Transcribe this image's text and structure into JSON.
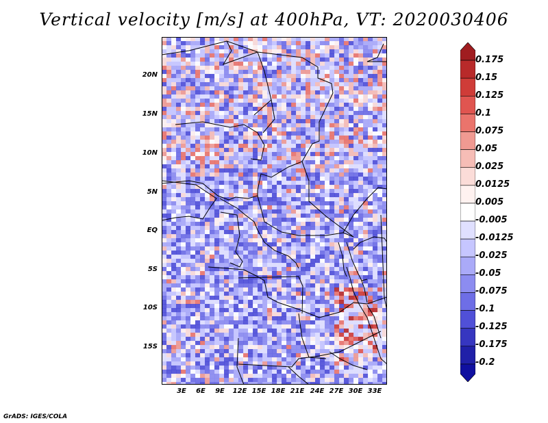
{
  "title": "Vertical velocity [m/s] at 400hPa, VT: 2020030406",
  "map": {
    "lat_labels": [
      "20N",
      "15N",
      "10N",
      "5N",
      "EQ",
      "5S",
      "10S",
      "15S"
    ],
    "lon_labels": [
      "3E",
      "6E",
      "9E",
      "12E",
      "15E",
      "18E",
      "21E",
      "24E",
      "27E",
      "30E",
      "33E"
    ]
  },
  "colorbar": {
    "labels": [
      "0.175",
      "0.15",
      "0.125",
      "0.1",
      "0.075",
      "0.05",
      "0.025",
      "0.0125",
      "0.005",
      "-0.005",
      "-0.0125",
      "-0.025",
      "-0.05",
      "-0.075",
      "-0.1",
      "-0.125",
      "-0.175",
      "-0.2"
    ],
    "colors": [
      "#a01d20",
      "#b82a2a",
      "#cf3c38",
      "#e05550",
      "#ea746c",
      "#f09a92",
      "#f6bdb6",
      "#fbdcd8",
      "#fff2f0",
      "#ffffff",
      "#e0e0ff",
      "#c6c6ff",
      "#aaaaf8",
      "#8c8cf0",
      "#6e6ee6",
      "#5050d8",
      "#3636c0",
      "#2020a8",
      "#1010a0"
    ]
  },
  "footer": "GrADS: IGES/COLA"
}
